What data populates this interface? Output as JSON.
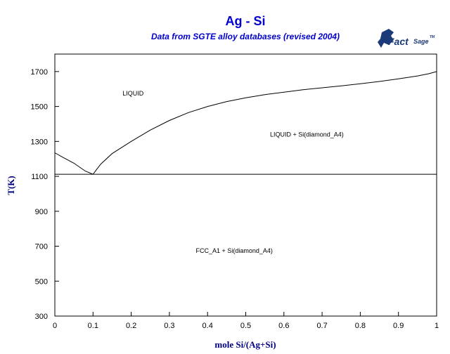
{
  "chart_data": {
    "type": "line",
    "title": "Ag - Si",
    "subtitle": "Data from SGTE alloy databases (revised 2004)",
    "xlabel": "mole Si/(Ag+Si)",
    "ylabel": "T(K)",
    "xlim": [
      0,
      1
    ],
    "ylim": [
      300,
      1800
    ],
    "x_ticks": [
      "0",
      "0.1",
      "0.2",
      "0.3",
      "0.4",
      "0.5",
      "0.6",
      "0.7",
      "0.8",
      "0.9",
      "1"
    ],
    "y_ticks": [
      "300",
      "500",
      "700",
      "900",
      "1100",
      "1300",
      "1500",
      "1700"
    ],
    "grid": false,
    "series": [
      {
        "role": "liquidus-ag-side",
        "x": [
          0,
          0.02,
          0.05,
          0.08,
          0.1
        ],
        "y": [
          1235,
          1210,
          1175,
          1130,
          1112
        ]
      },
      {
        "role": "liquidus-si-side",
        "x": [
          0.1,
          0.12,
          0.15,
          0.2,
          0.25,
          0.3,
          0.35,
          0.4,
          0.45,
          0.5,
          0.55,
          0.6,
          0.65,
          0.7,
          0.75,
          0.8,
          0.85,
          0.9,
          0.95,
          0.98,
          1.0
        ],
        "y": [
          1112,
          1170,
          1230,
          1300,
          1365,
          1420,
          1465,
          1500,
          1528,
          1550,
          1568,
          1582,
          1596,
          1607,
          1618,
          1630,
          1643,
          1658,
          1675,
          1688,
          1700
        ]
      },
      {
        "role": "eutectic-isotherm",
        "x": [
          0,
          1
        ],
        "y": [
          1112,
          1112
        ]
      }
    ],
    "annotations": [
      {
        "text": "LIQUID",
        "x": 0.205,
        "y": 1575
      },
      {
        "text": "LIQUID + Si(diamond_A4)",
        "x": 0.66,
        "y": 1340
      },
      {
        "text": "FCC_A1 + Si(diamond_A4)",
        "x": 0.47,
        "y": 675
      }
    ]
  },
  "logo": {
    "name": "factsage-logo",
    "text_main": "Fact",
    "text_sub": "Sage",
    "text_tm": "TM"
  }
}
